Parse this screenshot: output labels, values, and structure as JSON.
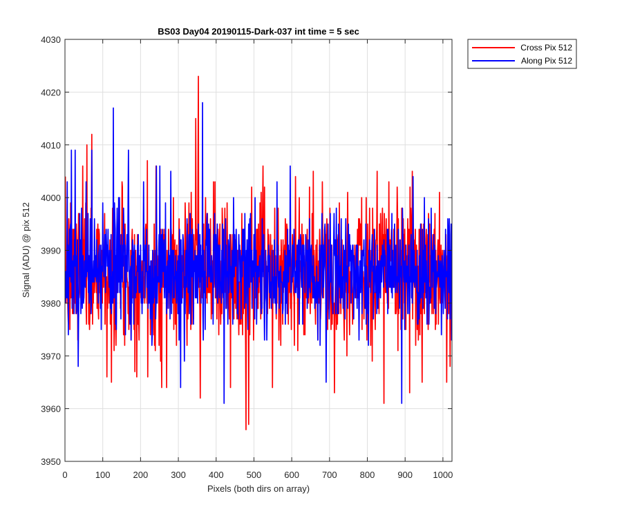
{
  "chart_data": {
    "type": "line",
    "title": "BS03 Day04 20190115-Dark-037 int time = 5 sec",
    "xlabel": "Pixels (both dirs on array)",
    "ylabel": "Signal (ADU) @ pix 512",
    "xlim": [
      0,
      1024
    ],
    "ylim": [
      3950,
      4030
    ],
    "xticks": [
      0,
      100,
      200,
      300,
      400,
      500,
      600,
      700,
      800,
      900,
      1000
    ],
    "yticks": [
      3950,
      3960,
      3970,
      3980,
      3990,
      4000,
      4010,
      4020,
      4030
    ],
    "grid": true,
    "legend_position": "outside-top-right",
    "series": [
      {
        "name": "Cross Pix 512",
        "color": "#ff0000",
        "noise": {
          "seed": 7,
          "mean": 3986,
          "sd": 6.5,
          "min": 3956,
          "max": 4023
        },
        "points": [
          [
            12,
            3975
          ],
          [
            35,
            3997
          ],
          [
            57,
            4010
          ],
          [
            70,
            4012
          ],
          [
            110,
            3966
          ],
          [
            122,
            3965
          ],
          [
            150,
            4003
          ],
          [
            184,
            3967
          ],
          [
            218,
            3966
          ],
          [
            240,
            4006
          ],
          [
            255,
            3964
          ],
          [
            268,
            3964
          ],
          [
            345,
            4015
          ],
          [
            352,
            4023
          ],
          [
            357,
            3962
          ],
          [
            392,
            4003
          ],
          [
            437,
            3964
          ],
          [
            478,
            3956
          ],
          [
            485,
            3957
          ],
          [
            523,
            4006
          ],
          [
            548,
            3964
          ],
          [
            562,
            3992
          ],
          [
            628,
            3991
          ],
          [
            664,
            3986
          ],
          [
            745,
            3970
          ],
          [
            781,
            3995
          ],
          [
            792,
            3985
          ],
          [
            825,
            4005
          ],
          [
            843,
            3961
          ],
          [
            880,
            3971
          ],
          [
            911,
            3963
          ],
          [
            944,
            3965
          ],
          [
            990,
            4001
          ],
          [
            1018,
            3968
          ]
        ]
      },
      {
        "name": "Along Pix 512",
        "color": "#0000ff",
        "noise": {
          "seed": 19,
          "mean": 3986,
          "sd": 5.5,
          "min": 3961,
          "max": 4018
        },
        "points": [
          [
            5,
            4003
          ],
          [
            16,
            4009
          ],
          [
            26,
            4009
          ],
          [
            34,
            3968
          ],
          [
            55,
            4003
          ],
          [
            70,
            4009
          ],
          [
            127,
            4017
          ],
          [
            135,
            3975
          ],
          [
            143,
            4000
          ],
          [
            167,
            4009
          ],
          [
            207,
            4003
          ],
          [
            241,
            4006
          ],
          [
            250,
            4006
          ],
          [
            279,
            4005
          ],
          [
            305,
            3964
          ],
          [
            340,
            3988
          ],
          [
            363,
            4018
          ],
          [
            370,
            3975
          ],
          [
            420,
            3961
          ],
          [
            445,
            4000
          ],
          [
            485,
            3995
          ],
          [
            514,
            3988
          ],
          [
            548,
            3985
          ],
          [
            560,
            4003
          ],
          [
            595,
            4006
          ],
          [
            602,
            3987
          ],
          [
            690,
            3965
          ],
          [
            740,
            3977
          ],
          [
            765,
            3987
          ],
          [
            795,
            3995
          ],
          [
            855,
            3992
          ],
          [
            885,
            3986
          ],
          [
            890,
            3961
          ],
          [
            950,
            4000
          ],
          [
            1022,
            3973
          ]
        ]
      }
    ]
  }
}
